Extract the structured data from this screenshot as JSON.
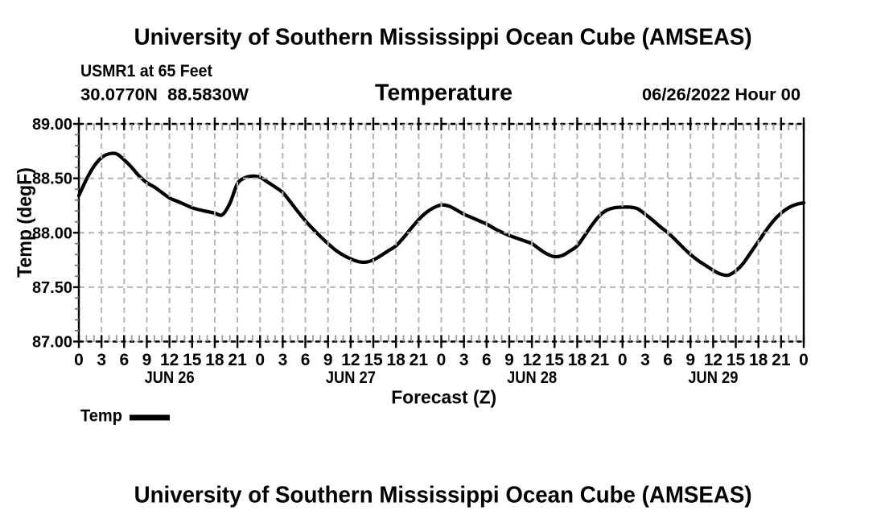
{
  "header": {
    "title": "University of Southern Mississippi Ocean Cube (AMSEAS)",
    "station": "USMR1 at 65 Feet",
    "coordinates": "30.0770N  88.5830W",
    "variable": "Temperature",
    "run_date": "06/26/2022 Hour 00"
  },
  "footer": {
    "next_panel_title": "University of Southern Mississippi Ocean Cube (AMSEAS)"
  },
  "legend": {
    "label": "Temp",
    "swatch_color": "#000000"
  },
  "style": {
    "background": "#ffffff",
    "curve_color": "#000000",
    "grid_color": "#b4b4b4",
    "axis_edge_solid_color": "#c4c4c4",
    "axis_dash_color": "#000000",
    "minor_tick_color_x": "#999999",
    "minor_tick_color_y": "#777777",
    "text_color": "#000000"
  },
  "chart_data": {
    "type": "line",
    "title": "Temperature",
    "xlabel": "Forecast (Z)",
    "ylabel": "Temp (degF)",
    "ylim": [
      87.0,
      89.0
    ],
    "y_major_step": 0.5,
    "y_minor_step": 0.1,
    "y_tick_labels": [
      "87.00",
      "87.50",
      "88.00",
      "88.50",
      "89.00"
    ],
    "x_hours_range": [
      0,
      96
    ],
    "x_major_step_hours": 3,
    "x_minor_step_hours": 1,
    "x_tick_labels": [
      "0",
      "3",
      "6",
      "9",
      "12",
      "15",
      "18",
      "21",
      "0",
      "3",
      "6",
      "9",
      "12",
      "15",
      "18",
      "21",
      "0",
      "3",
      "6",
      "9",
      "12",
      "15",
      "18",
      "21",
      "0",
      "3",
      "6",
      "9",
      "12",
      "15",
      "18",
      "21",
      "0"
    ],
    "day_labels": [
      {
        "label": "JUN 26",
        "center_hour": 12
      },
      {
        "label": "JUN 27",
        "center_hour": 36
      },
      {
        "label": "JUN 28",
        "center_hour": 60
      },
      {
        "label": "JUN 29",
        "center_hour": 84
      }
    ],
    "grid": true,
    "legend_position": "bottom-left",
    "series": [
      {
        "name": "Temp",
        "x_step_hours": 1,
        "values": [
          88.34,
          88.49,
          88.61,
          88.69,
          88.725,
          88.725,
          88.67,
          88.6,
          88.52,
          88.46,
          88.42,
          88.37,
          88.32,
          88.29,
          88.26,
          88.23,
          88.21,
          88.195,
          88.18,
          88.165,
          88.27,
          88.45,
          88.505,
          88.52,
          88.51,
          88.465,
          88.42,
          88.37,
          88.285,
          88.195,
          88.11,
          88.035,
          87.965,
          87.9,
          87.84,
          87.795,
          87.76,
          87.735,
          87.73,
          87.75,
          87.79,
          87.835,
          87.88,
          87.955,
          88.04,
          88.12,
          88.185,
          88.23,
          88.255,
          88.245,
          88.21,
          88.17,
          88.14,
          88.11,
          88.08,
          88.04,
          88.005,
          87.975,
          87.95,
          87.925,
          87.9,
          87.85,
          87.805,
          87.78,
          87.79,
          87.83,
          87.88,
          87.975,
          88.075,
          88.16,
          88.21,
          88.23,
          88.235,
          88.235,
          88.22,
          88.17,
          88.115,
          88.055,
          88.0,
          87.935,
          87.865,
          87.8,
          87.745,
          87.7,
          87.655,
          87.62,
          87.61,
          87.65,
          87.72,
          87.82,
          87.92,
          88.02,
          88.11,
          88.18,
          88.23,
          88.26,
          88.275
        ]
      }
    ]
  }
}
